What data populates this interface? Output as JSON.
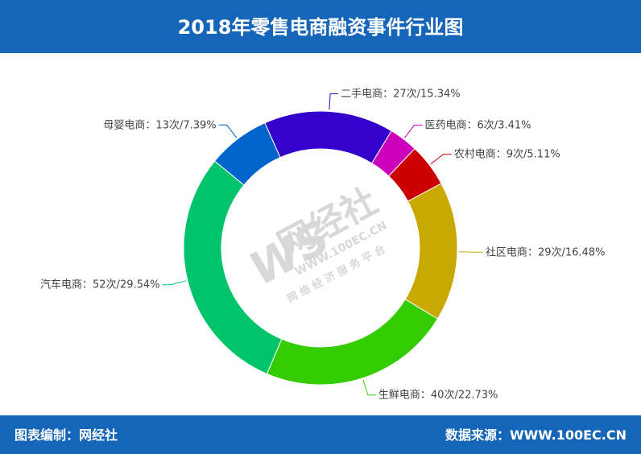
{
  "chart_data": {
    "type": "donut",
    "title": "2018年零售电商融资事件行业图",
    "categories": [
      "二手电商",
      "医药电商",
      "农村电商",
      "社区电商",
      "生鲜电商",
      "汽车电商",
      "母婴电商"
    ],
    "values": [
      27,
      6,
      9,
      29,
      40,
      52,
      13
    ],
    "value_labels": [
      "：27次/15.34%",
      "：6次/3.41%",
      "：9次/5.11%",
      "：29次/16.48%",
      "：40次/22.73%",
      "：52次/29.54%",
      "：13次/7.39%"
    ],
    "colors": [
      "#3300cc",
      "#cc00bb",
      "#cc0000",
      "#c9a800",
      "#33cc00",
      "#00c46a",
      "#0066cc"
    ]
  },
  "watermark": {
    "brand": "网经社",
    "url": "WWW.100EC.CN",
    "slogan": "网 络 经 济 服 务 平 台"
  },
  "footer": {
    "left": "图表编制：网经社",
    "right": "数据来源：WWW.100EC.CN"
  }
}
